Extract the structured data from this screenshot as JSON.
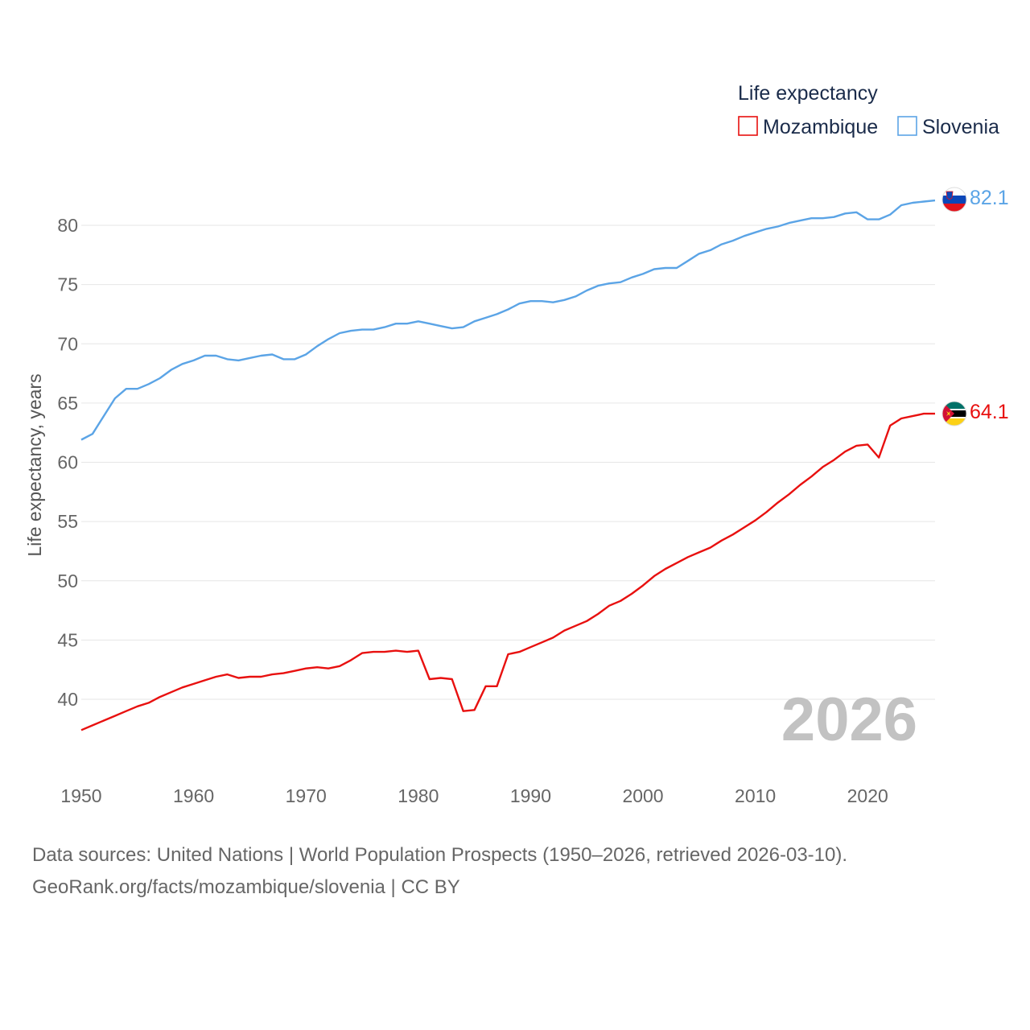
{
  "chart_data": {
    "type": "line",
    "legend": {
      "title": "Life expectancy",
      "position": "top-right"
    },
    "ylabel": "Life expectancy, years",
    "xlim": [
      1950,
      2026
    ],
    "ylim": [
      35,
      84
    ],
    "y_ticks": [
      40,
      45,
      50,
      55,
      60,
      65,
      70,
      75,
      80
    ],
    "x_ticks": [
      1950,
      1960,
      1970,
      1980,
      1990,
      2000,
      2010,
      2020
    ],
    "grid": true,
    "year_label": "2026",
    "x": [
      1950,
      1951,
      1952,
      1953,
      1954,
      1955,
      1956,
      1957,
      1958,
      1959,
      1960,
      1961,
      1962,
      1963,
      1964,
      1965,
      1966,
      1967,
      1968,
      1969,
      1970,
      1971,
      1972,
      1973,
      1974,
      1975,
      1976,
      1977,
      1978,
      1979,
      1980,
      1981,
      1982,
      1983,
      1984,
      1985,
      1986,
      1987,
      1988,
      1989,
      1990,
      1991,
      1992,
      1993,
      1994,
      1995,
      1996,
      1997,
      1998,
      1999,
      2000,
      2001,
      2002,
      2003,
      2004,
      2005,
      2006,
      2007,
      2008,
      2009,
      2010,
      2011,
      2012,
      2013,
      2014,
      2015,
      2016,
      2017,
      2018,
      2019,
      2020,
      2021,
      2022,
      2023,
      2024,
      2025,
      2026
    ],
    "series": [
      {
        "name": "Mozambique",
        "color": "#e8100f",
        "end_label": "64.1",
        "flag": "mozambique-flag",
        "values": [
          37.4,
          37.8,
          38.2,
          38.6,
          39.0,
          39.4,
          39.7,
          40.2,
          40.6,
          41.0,
          41.3,
          41.6,
          41.9,
          42.1,
          41.8,
          41.9,
          41.9,
          42.1,
          42.2,
          42.4,
          42.6,
          42.7,
          42.6,
          42.8,
          43.3,
          43.9,
          44.0,
          44.0,
          44.1,
          44.0,
          44.1,
          41.7,
          41.8,
          41.7,
          39.0,
          39.1,
          41.1,
          41.1,
          43.8,
          44.0,
          44.4,
          44.8,
          45.2,
          45.8,
          46.2,
          46.6,
          47.2,
          47.9,
          48.3,
          48.9,
          49.6,
          50.4,
          51.0,
          51.5,
          52.0,
          52.4,
          52.8,
          53.4,
          53.9,
          54.5,
          55.1,
          55.8,
          56.6,
          57.3,
          58.1,
          58.8,
          59.6,
          60.2,
          60.9,
          61.4,
          61.5,
          60.4,
          63.1,
          63.7,
          63.9,
          64.1,
          64.1
        ]
      },
      {
        "name": "Slovenia",
        "color": "#5ba4e6",
        "end_label": "82.1",
        "flag": "slovenia-flag",
        "values": [
          61.9,
          62.4,
          63.9,
          65.4,
          66.2,
          66.2,
          66.6,
          67.1,
          67.8,
          68.3,
          68.6,
          69.0,
          69.0,
          68.7,
          68.6,
          68.8,
          69.0,
          69.1,
          68.7,
          68.7,
          69.1,
          69.8,
          70.4,
          70.9,
          71.1,
          71.2,
          71.2,
          71.4,
          71.7,
          71.7,
          71.9,
          71.7,
          71.5,
          71.3,
          71.4,
          71.9,
          72.2,
          72.5,
          72.9,
          73.4,
          73.6,
          73.6,
          73.5,
          73.7,
          74.0,
          74.5,
          74.9,
          75.1,
          75.2,
          75.6,
          75.9,
          76.3,
          76.4,
          76.4,
          77.0,
          77.6,
          77.9,
          78.4,
          78.7,
          79.1,
          79.4,
          79.7,
          79.9,
          80.2,
          80.4,
          80.6,
          80.6,
          80.7,
          81.0,
          81.1,
          80.5,
          80.5,
          80.9,
          81.7,
          81.9,
          82.0,
          82.1
        ]
      }
    ]
  },
  "footer": {
    "line1": "Data sources: United Nations | World Population Prospects (1950–2026, retrieved 2026-03-10).",
    "line2": "GeoRank.org/facts/mozambique/slovenia | CC BY"
  }
}
